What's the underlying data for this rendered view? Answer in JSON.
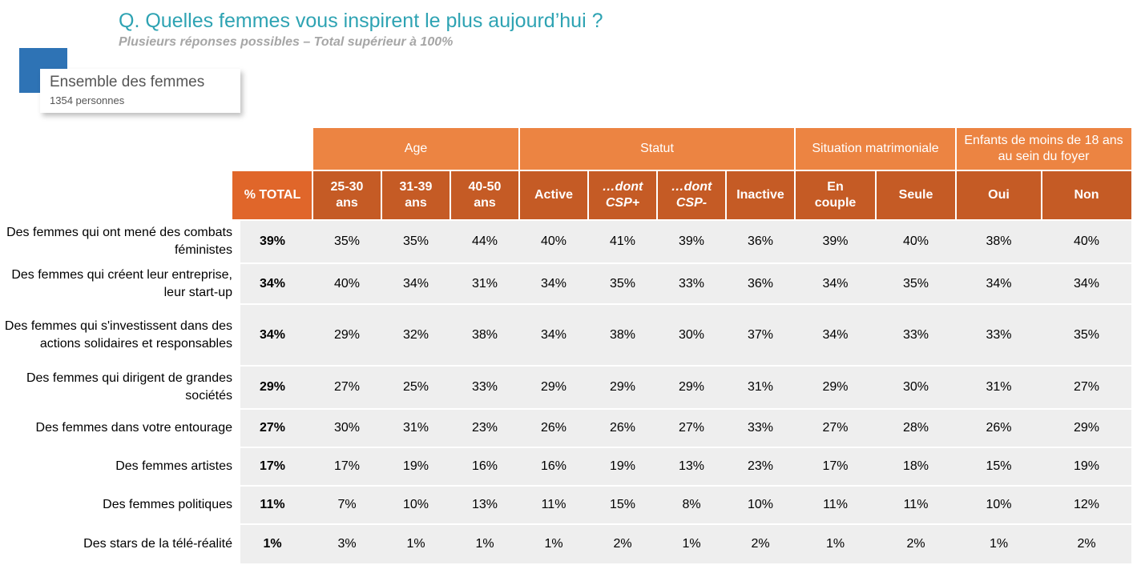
{
  "header": {
    "title": "Q. Quelles femmes vous inspirent le plus aujourd’hui ?",
    "subtitle": "Plusieurs réponses possibles – Total supérieur à 100%"
  },
  "group": {
    "title": "Ensemble des femmes",
    "count": "1354 personnes"
  },
  "colors": {
    "title": "#2ea3b3",
    "group_header": "#ec8442",
    "sub_header": "#c55b25",
    "total_header": "#e0662a",
    "row_band": "#eeeeee",
    "accent": "#2e73b5"
  },
  "table": {
    "groups": [
      {
        "label": "Age"
      },
      {
        "label": "Statut"
      },
      {
        "label": "Situation matrimoniale"
      },
      {
        "label": "Enfants de moins de 18 ans au sein du foyer"
      }
    ],
    "columns": [
      "% TOTAL",
      "25-30 ans",
      "31-39 ans",
      "40-50 ans",
      "Active",
      "…dont CSP+",
      "…dont CSP-",
      "Inactive",
      "En couple",
      "Seule",
      "Oui",
      "Non"
    ],
    "rows": [
      {
        "label": "Des femmes qui ont mené des combats féministes",
        "values": [
          "39%",
          "35%",
          "35%",
          "44%",
          "40%",
          "41%",
          "39%",
          "36%",
          "39%",
          "40%",
          "38%",
          "40%"
        ]
      },
      {
        "label": "Des femmes qui créent leur entreprise, leur start-up",
        "values": [
          "34%",
          "40%",
          "34%",
          "31%",
          "34%",
          "35%",
          "33%",
          "36%",
          "34%",
          "35%",
          "34%",
          "34%"
        ]
      },
      {
        "label": "Des femmes qui s'investissent dans des actions solidaires et responsables",
        "values": [
          "34%",
          "29%",
          "32%",
          "38%",
          "34%",
          "38%",
          "30%",
          "37%",
          "34%",
          "33%",
          "33%",
          "35%"
        ]
      },
      {
        "label": "Des femmes qui dirigent de grandes sociétés",
        "values": [
          "29%",
          "27%",
          "25%",
          "33%",
          "29%",
          "29%",
          "29%",
          "31%",
          "29%",
          "30%",
          "31%",
          "27%"
        ]
      },
      {
        "label": "Des femmes dans votre entourage",
        "values": [
          "27%",
          "30%",
          "31%",
          "23%",
          "26%",
          "26%",
          "27%",
          "33%",
          "27%",
          "28%",
          "26%",
          "29%"
        ]
      },
      {
        "label": "Des femmes artistes",
        "values": [
          "17%",
          "17%",
          "19%",
          "16%",
          "16%",
          "19%",
          "13%",
          "23%",
          "17%",
          "18%",
          "15%",
          "19%"
        ]
      },
      {
        "label": "Des femmes politiques",
        "values": [
          "11%",
          "7%",
          "10%",
          "13%",
          "11%",
          "15%",
          "8%",
          "10%",
          "11%",
          "11%",
          "10%",
          "12%"
        ]
      },
      {
        "label": "Des stars de la télé-réalité",
        "values": [
          "1%",
          "3%",
          "1%",
          "1%",
          "1%",
          "2%",
          "1%",
          "2%",
          "1%",
          "2%",
          "1%",
          "2%"
        ]
      }
    ]
  }
}
